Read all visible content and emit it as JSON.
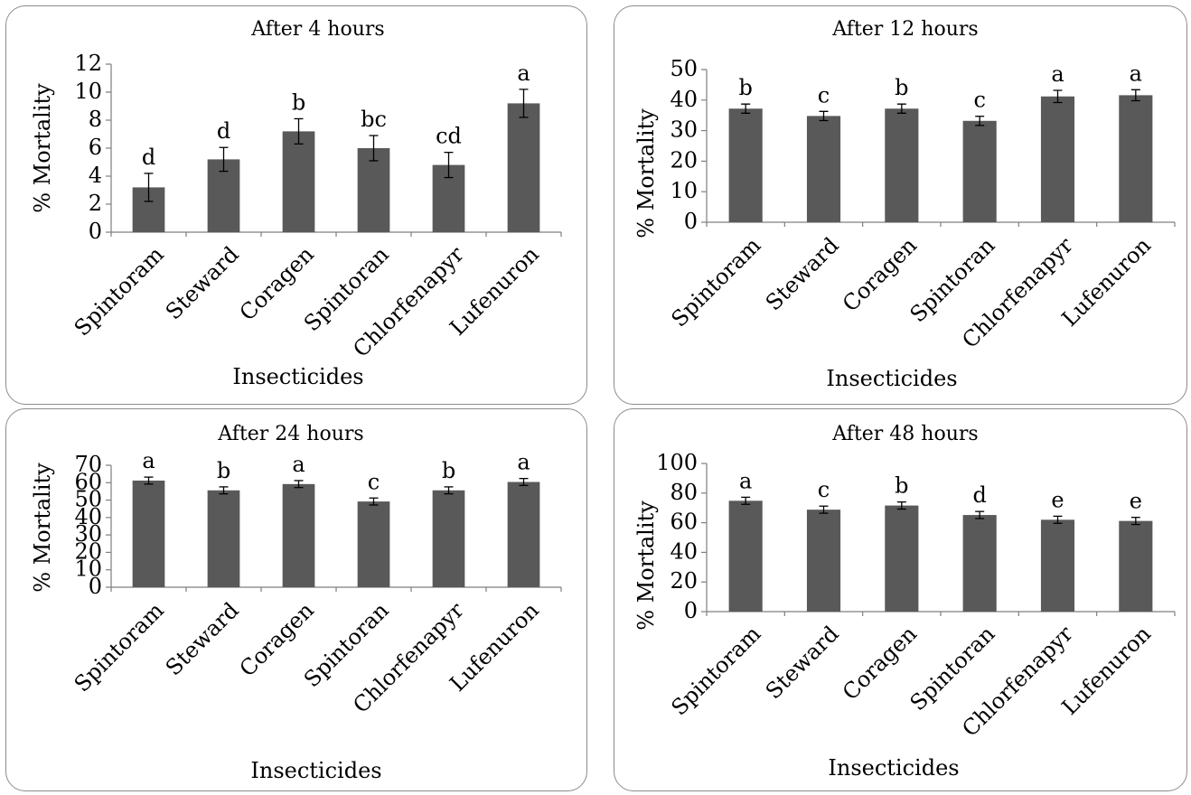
{
  "chart_data": [
    {
      "type": "bar",
      "title": "After 4 hours",
      "xlabel": "Insecticides",
      "ylabel": "% Mortality",
      "categories": [
        "Spintoram",
        "Steward",
        "Coragen",
        "Spintoran",
        "Chlorfenapyr",
        "Lufenuron"
      ],
      "values": [
        3.2,
        5.2,
        7.2,
        6.0,
        4.8,
        9.2
      ],
      "errors": [
        1.0,
        0.85,
        0.9,
        0.9,
        0.9,
        1.0
      ],
      "letters": [
        "d",
        "d",
        "b",
        "bc",
        "cd",
        "a"
      ],
      "ylim": [
        0,
        12
      ],
      "yticks": [
        0,
        2,
        4,
        6,
        8,
        10,
        12
      ],
      "bar_color": "#595959",
      "grid": false,
      "legend": "none"
    },
    {
      "type": "bar",
      "title": "After 12 hours",
      "xlabel": "Insecticides",
      "ylabel": "% Mortality",
      "categories": [
        "Spintoram",
        "Steward",
        "Coragen",
        "Spintoran",
        "Chlorfenapyr",
        "Lufenuron"
      ],
      "values": [
        37.2,
        34.8,
        37.2,
        33.2,
        41.2,
        41.6
      ],
      "errors": [
        1.5,
        1.5,
        1.5,
        1.5,
        2.0,
        1.8
      ],
      "letters": [
        "b",
        "c",
        "b",
        "c",
        "a",
        "a"
      ],
      "ylim": [
        0,
        50
      ],
      "yticks": [
        0,
        10,
        20,
        30,
        40,
        50
      ],
      "bar_color": "#595959",
      "grid": false,
      "legend": "none"
    },
    {
      "type": "bar",
      "title": "After 24 hours",
      "xlabel": "Insecticides",
      "ylabel": "% Mortality",
      "categories": [
        "Spintoram",
        "Steward",
        "Coragen",
        "Spintoran",
        "Chlorfenapyr",
        "Lufenuron"
      ],
      "values": [
        61.2,
        55.6,
        59.2,
        49.2,
        55.6,
        60.4
      ],
      "errors": [
        2.0,
        2.0,
        2.0,
        2.0,
        2.0,
        2.0
      ],
      "letters": [
        "a",
        "b",
        "a",
        "c",
        "b",
        "a"
      ],
      "ylim": [
        0,
        70
      ],
      "yticks": [
        0,
        10,
        20,
        30,
        40,
        50,
        60,
        70
      ],
      "bar_color": "#595959",
      "grid": false,
      "legend": "none"
    },
    {
      "type": "bar",
      "title": "After 48 hours",
      "xlabel": "Insecticides",
      "ylabel": "% Mortality",
      "categories": [
        "Spintoram",
        "Steward",
        "Coragen",
        "Spintoran",
        "Chlorfenapyr",
        "Lufenuron"
      ],
      "values": [
        74.8,
        68.8,
        71.6,
        65.2,
        62.0,
        61.2
      ],
      "errors": [
        2.4,
        2.4,
        2.4,
        2.4,
        2.4,
        2.4
      ],
      "letters": [
        "a",
        "c",
        "b",
        "d",
        "e",
        "e"
      ],
      "ylim": [
        0,
        100
      ],
      "yticks": [
        0,
        20,
        40,
        60,
        80,
        100
      ],
      "bar_color": "#595959",
      "grid": false,
      "legend": "none"
    }
  ]
}
